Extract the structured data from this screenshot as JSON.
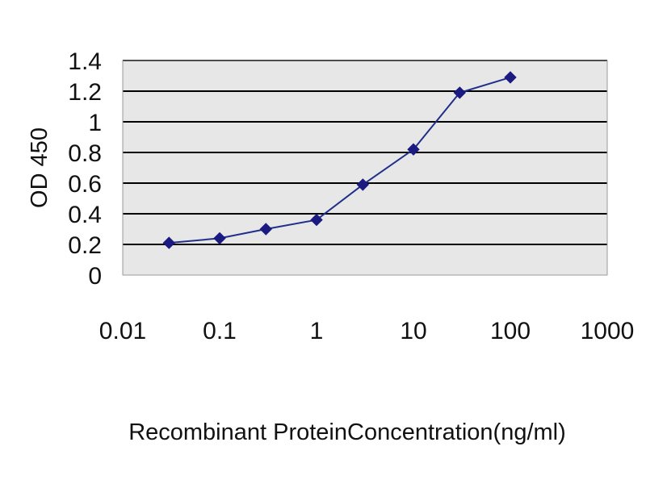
{
  "chart_data": {
    "type": "line",
    "title": "",
    "xlabel": "Recombinant ProteinConcentration(ng/ml)",
    "ylabel": "OD 450",
    "x_scale": "log",
    "xlim": [
      0.01,
      1000
    ],
    "ylim": [
      0,
      1.4
    ],
    "x_ticks": [
      "0.01",
      "0.1",
      "1",
      "10",
      "100",
      "1000"
    ],
    "y_ticks": [
      "0",
      "0.2",
      "0.4",
      "0.6",
      "0.8",
      "1",
      "1.2",
      "1.4"
    ],
    "grid": "horizontal",
    "legend": "none",
    "series": [
      {
        "x": [
          0.03,
          0.1,
          0.3,
          1,
          3,
          10,
          30,
          100
        ],
        "y": [
          0.21,
          0.24,
          0.3,
          0.36,
          0.59,
          0.82,
          1.19,
          1.29
        ]
      }
    ],
    "colors": {
      "line": "#1f2f8a",
      "marker": "#1a1a80",
      "plot_background": "#e7e7e7",
      "gridline": "#000000"
    }
  }
}
